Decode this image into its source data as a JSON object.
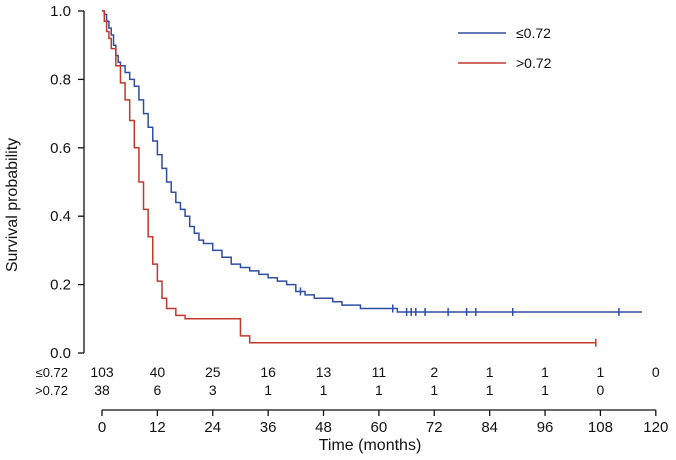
{
  "chart_data": {
    "type": "line",
    "subtype": "kaplan-meier",
    "title": "",
    "xlabel": "Time (months)",
    "ylabel": "Survival probability",
    "xlim": [
      0,
      120
    ],
    "ylim": [
      0,
      1
    ],
    "x_ticks": [
      0,
      12,
      24,
      36,
      48,
      60,
      72,
      84,
      96,
      108,
      120
    ],
    "y_ticks": [
      "0.0",
      "0.2",
      "0.4",
      "0.6",
      "0.8",
      "1.0"
    ],
    "grid": false,
    "legend_position": "top-right",
    "series": [
      {
        "name": "≤0.72",
        "color": "#2e4fa0",
        "steps": [
          [
            0,
            1.0
          ],
          [
            0.5,
            0.99
          ],
          [
            1,
            0.97
          ],
          [
            1.5,
            0.95
          ],
          [
            2,
            0.93
          ],
          [
            2.5,
            0.9
          ],
          [
            3,
            0.87
          ],
          [
            3.5,
            0.85
          ],
          [
            4,
            0.84
          ],
          [
            5,
            0.82
          ],
          [
            6,
            0.8
          ],
          [
            7,
            0.78
          ],
          [
            8,
            0.74
          ],
          [
            9,
            0.7
          ],
          [
            10,
            0.66
          ],
          [
            11,
            0.62
          ],
          [
            12,
            0.58
          ],
          [
            13,
            0.54
          ],
          [
            14,
            0.5
          ],
          [
            15,
            0.47
          ],
          [
            16,
            0.44
          ],
          [
            17,
            0.42
          ],
          [
            18,
            0.4
          ],
          [
            19,
            0.37
          ],
          [
            20,
            0.35
          ],
          [
            21,
            0.33
          ],
          [
            22,
            0.32
          ],
          [
            24,
            0.3
          ],
          [
            26,
            0.28
          ],
          [
            28,
            0.26
          ],
          [
            30,
            0.25
          ],
          [
            32,
            0.24
          ],
          [
            34,
            0.23
          ],
          [
            36,
            0.22
          ],
          [
            38,
            0.21
          ],
          [
            40,
            0.2
          ],
          [
            42,
            0.18
          ],
          [
            44,
            0.17
          ],
          [
            46,
            0.16
          ],
          [
            48,
            0.16
          ],
          [
            50,
            0.15
          ],
          [
            52,
            0.14
          ],
          [
            56,
            0.13
          ],
          [
            64,
            0.12
          ],
          [
            117,
            0.12
          ]
        ],
        "censor_times": [
          43,
          63,
          66,
          67,
          68,
          70,
          75,
          79,
          81,
          89,
          112
        ]
      },
      {
        "name": ">0.72",
        "color": "#c0392b",
        "steps": [
          [
            0,
            1.0
          ],
          [
            0.5,
            0.97
          ],
          [
            1,
            0.94
          ],
          [
            1.5,
            0.92
          ],
          [
            2,
            0.89
          ],
          [
            3,
            0.84
          ],
          [
            4,
            0.79
          ],
          [
            5,
            0.74
          ],
          [
            6,
            0.68
          ],
          [
            7,
            0.6
          ],
          [
            8,
            0.5
          ],
          [
            9,
            0.42
          ],
          [
            10,
            0.34
          ],
          [
            11,
            0.26
          ],
          [
            12,
            0.21
          ],
          [
            13,
            0.16
          ],
          [
            14,
            0.13
          ],
          [
            16,
            0.11
          ],
          [
            18,
            0.1
          ],
          [
            30,
            0.05
          ],
          [
            32,
            0.03
          ],
          [
            107,
            0.03
          ]
        ],
        "censor_times": [
          107
        ]
      }
    ],
    "risk_table": {
      "times": [
        0,
        12,
        24,
        36,
        48,
        60,
        72,
        84,
        96,
        108,
        120
      ],
      "rows": [
        {
          "label": "≤0.72",
          "values": [
            "103",
            "40",
            "25",
            "16",
            "13",
            "11",
            "2",
            "1",
            "1",
            "1",
            "0"
          ]
        },
        {
          "label": ">0.72",
          "values": [
            "38",
            "6",
            "3",
            "1",
            "1",
            "1",
            "1",
            "1",
            "1",
            "0",
            ""
          ]
        }
      ]
    }
  }
}
